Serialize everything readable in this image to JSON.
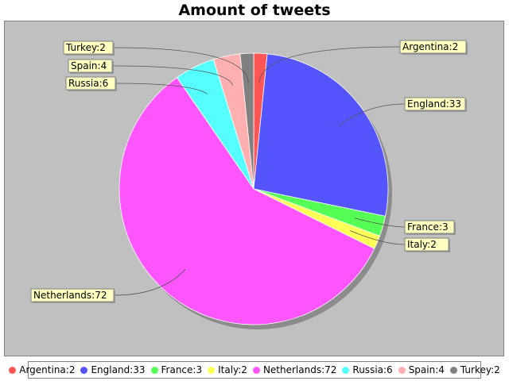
{
  "chart_data": {
    "type": "pie",
    "title": "Amount of tweets",
    "categories": [
      "Argentina",
      "England",
      "France",
      "Italy",
      "Netherlands",
      "Russia",
      "Spain",
      "Turkey"
    ],
    "values": [
      2,
      33,
      3,
      2,
      72,
      6,
      4,
      2
    ],
    "labels": [
      "Argentina:2",
      "England:33",
      "France:3",
      "Italy:2",
      "Netherlands:72",
      "Russia:6",
      "Spain:4",
      "Turkey:2"
    ],
    "colors": [
      "#ff5555",
      "#5555ff",
      "#55ff55",
      "#ffff55",
      "#ff55ff",
      "#55ffff",
      "#ffafaf",
      "#808080"
    ],
    "legend": "bottom",
    "background_color": "#c0c0c0",
    "label_box_color": "#ffffc0"
  }
}
